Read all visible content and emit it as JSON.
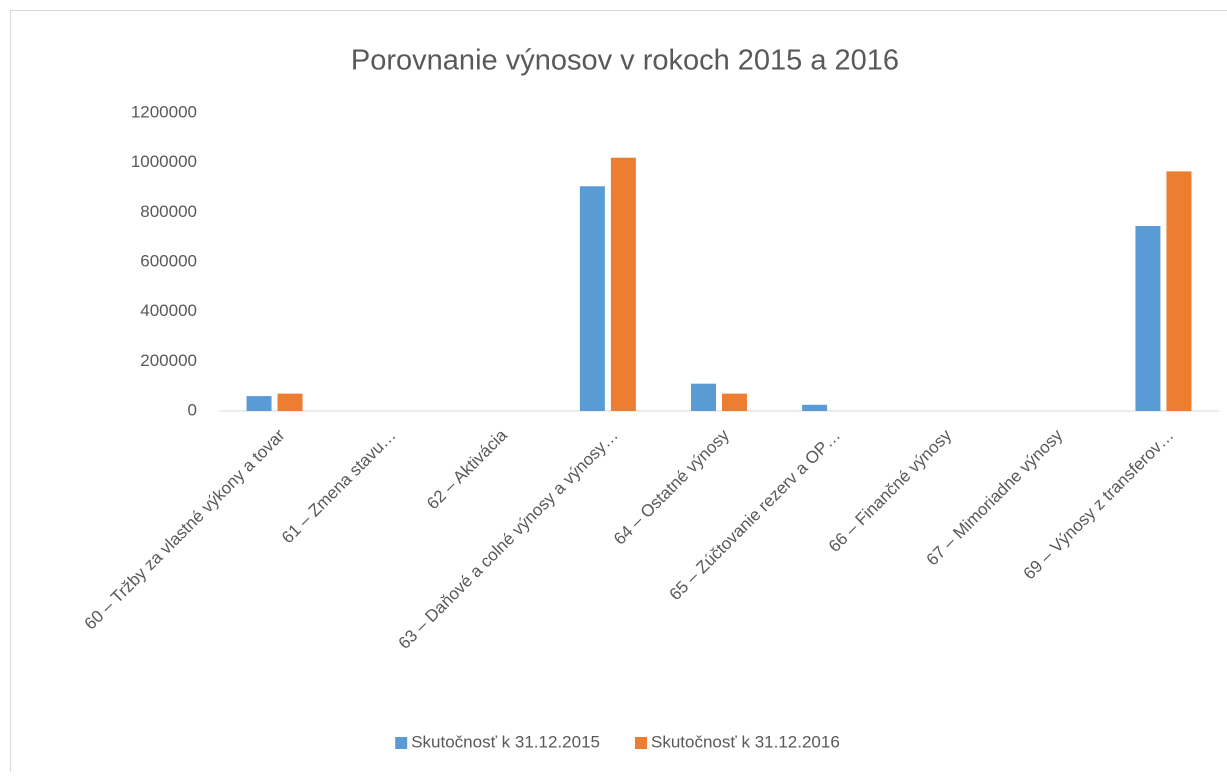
{
  "chart_data": {
    "type": "bar",
    "title": "Porovnanie výnosov v rokoch 2015 a 2016",
    "categories": [
      "60 – Tržby za vlastné výkony a tovar",
      "61 – Zmena stavu…",
      "62 – Aktivácia",
      "63 – Daňové a colné výnosy a výnosy…",
      "64 – Ostatné výnosy",
      "65 – Zúčtovanie rezerv a OP…",
      "66 – Finančné výnosy",
      "67 – Mimoriadne výnosy",
      "69 – Výnosy z transferov…"
    ],
    "series": [
      {
        "name": "Skutočnosť k 31.12.2015",
        "color": "#5b9bd5",
        "values": [
          60000,
          0,
          0,
          905000,
          110000,
          25000,
          0,
          0,
          745000
        ]
      },
      {
        "name": "Skutočnosť k 31.12.2016",
        "color": "#ed7d31",
        "values": [
          70000,
          0,
          0,
          1020000,
          70000,
          0,
          0,
          0,
          965000
        ]
      }
    ],
    "ylim": [
      0,
      1200000
    ],
    "yticks": [
      0,
      200000,
      400000,
      600000,
      800000,
      1000000,
      1200000
    ],
    "grid": false,
    "legend": "bottom"
  }
}
